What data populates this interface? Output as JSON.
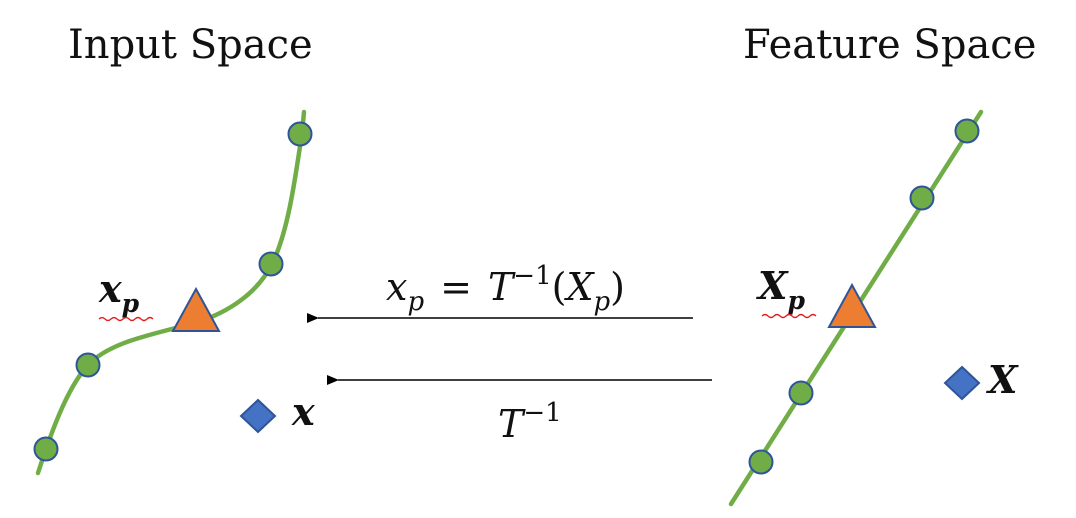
{
  "titles": {
    "input_space": "Input Space",
    "feature_space": "Feature Space"
  },
  "labels": {
    "input_point_base": "x",
    "input_point_sub": "p",
    "input_query": "x",
    "feature_point_base": "X",
    "feature_point_sub": "p",
    "feature_query": "X"
  },
  "equations": {
    "top_lhs_base": "x",
    "top_lhs_sub": "p",
    "top_equals": "=",
    "top_T": "T",
    "top_exp": "−1",
    "top_open": "(",
    "top_arg_base": "X",
    "top_arg_sub": "p",
    "top_close": ")",
    "bottom_T": "T",
    "bottom_exp": "−1"
  },
  "colors": {
    "curve": "#70ad47",
    "circle_fill": "#70ad47",
    "circle_stroke": "#2f5597",
    "triangle_fill": "#ed7d31",
    "triangle_stroke": "#2f5597",
    "diamond_fill": "#4472c4",
    "diamond_stroke": "#2f5597",
    "arrow": "#000000",
    "squiggle": "#e02020"
  }
}
